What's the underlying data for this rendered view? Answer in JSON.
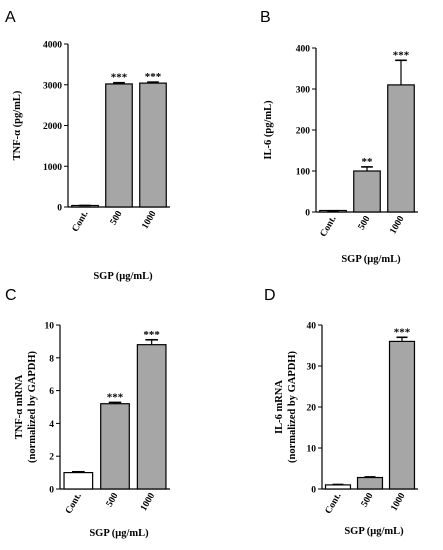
{
  "chart_data": [
    {
      "type": "bar",
      "panel": "A",
      "categories": [
        "Cont.",
        "500",
        "1000"
      ],
      "values": [
        30,
        3020,
        3040
      ],
      "errors": [
        8,
        30,
        25
      ],
      "bar_colors": [
        "#ffffff",
        "#a6a6a6",
        "#a6a6a6"
      ],
      "significance": [
        "",
        "***",
        "***"
      ],
      "ylabel": "TNF-α (pg/mL)",
      "xlabel": "SGP (μg/mL)",
      "ylim": [
        0,
        4000
      ],
      "yticks": [
        0,
        1000,
        2000,
        3000,
        4000
      ],
      "title": ""
    },
    {
      "type": "bar",
      "panel": "B",
      "categories": [
        "Cont.",
        "500",
        "1000"
      ],
      "values": [
        2,
        100,
        310
      ],
      "errors": [
        1,
        10,
        60
      ],
      "bar_colors": [
        "#ffffff",
        "#a6a6a6",
        "#a6a6a6"
      ],
      "significance": [
        "",
        "**",
        "***"
      ],
      "ylabel": "IL-6 (pg/mL)",
      "xlabel": "SGP (μg/mL)",
      "ylim": [
        0,
        400
      ],
      "yticks": [
        0,
        100,
        200,
        300,
        400
      ],
      "title": ""
    },
    {
      "type": "bar",
      "panel": "C",
      "categories": [
        "Cont.",
        "500",
        "1000"
      ],
      "values": [
        1.0,
        5.2,
        8.8
      ],
      "errors": [
        0.05,
        0.08,
        0.3
      ],
      "bar_colors": [
        "#ffffff",
        "#a6a6a6",
        "#a6a6a6"
      ],
      "significance": [
        "",
        "***",
        "***"
      ],
      "ylabel": "TNF-α mRNA",
      "ylabel2": "(normalized by GAPDH)",
      "xlabel": "SGP (μg/mL)",
      "ylim": [
        0,
        10
      ],
      "yticks": [
        0,
        2,
        4,
        6,
        8,
        10
      ],
      "title": ""
    },
    {
      "type": "bar",
      "panel": "D",
      "categories": [
        "Cont.",
        "500",
        "1000"
      ],
      "values": [
        1.0,
        2.8,
        36.0
      ],
      "errors": [
        0.1,
        0.15,
        1.0
      ],
      "bar_colors": [
        "#ffffff",
        "#a6a6a6",
        "#a6a6a6"
      ],
      "significance": [
        "",
        "",
        "***"
      ],
      "ylabel": "IL-6 mRNA",
      "ylabel2": "(normalized by GAPDH)",
      "xlabel": "SGP (μg/mL)",
      "ylim": [
        0,
        40
      ],
      "yticks": [
        0,
        10,
        20,
        30,
        40
      ],
      "title": ""
    }
  ]
}
